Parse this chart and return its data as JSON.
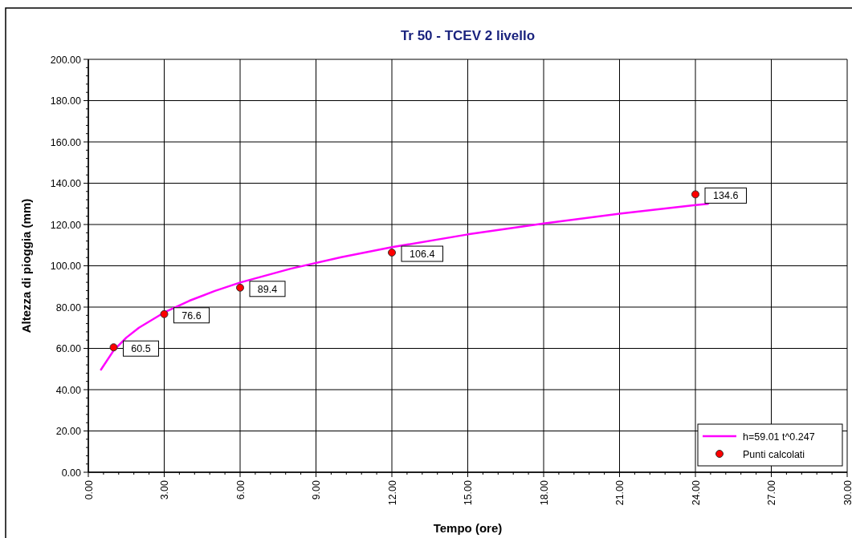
{
  "chart_data": {
    "type": "scatter",
    "title": "Tr 50 - TCEV 2 livello",
    "xlabel": "Tempo (ore)",
    "ylabel": "Altezza di pioggia (mm)",
    "xlim": [
      0,
      30
    ],
    "ylim": [
      0,
      200
    ],
    "xticks": [
      {
        "value": 0,
        "label": "0.00"
      },
      {
        "value": 3,
        "label": "3.00"
      },
      {
        "value": 6,
        "label": "6.00"
      },
      {
        "value": 9,
        "label": "9.00"
      },
      {
        "value": 12,
        "label": "12.00"
      },
      {
        "value": 15,
        "label": "15.00"
      },
      {
        "value": 18,
        "label": "18.00"
      },
      {
        "value": 21,
        "label": "21.00"
      },
      {
        "value": 24,
        "label": "24.00"
      },
      {
        "value": 27,
        "label": "27.00"
      },
      {
        "value": 30,
        "label": "30.00"
      }
    ],
    "yticks": [
      {
        "value": 0,
        "label": "0.00"
      },
      {
        "value": 20,
        "label": "20.00"
      },
      {
        "value": 40,
        "label": "40.00"
      },
      {
        "value": 60,
        "label": "60.00"
      },
      {
        "value": 80,
        "label": "80.00"
      },
      {
        "value": 100,
        "label": "100.00"
      },
      {
        "value": 120,
        "label": "120.00"
      },
      {
        "value": 140,
        "label": "140.00"
      },
      {
        "value": 160,
        "label": "160.00"
      },
      {
        "value": 180,
        "label": "180.00"
      },
      {
        "value": 200,
        "label": "200.00"
      }
    ],
    "grid": true,
    "legend": "bottom right",
    "series": [
      {
        "name": "h=59.01 t^0.247",
        "type": "line",
        "color": "#ff00ff",
        "marker": "none",
        "x": [
          0.5,
          1,
          1.5,
          2,
          3,
          4,
          5,
          6,
          8,
          10,
          12,
          15,
          18,
          21,
          24,
          24.5
        ],
        "values": [
          49.7,
          59.0,
          65.2,
          70.0,
          77.4,
          83.1,
          87.8,
          91.9,
          98.6,
          104.2,
          109.0,
          115.2,
          120.5,
          125.2,
          129.4,
          130.0
        ]
      },
      {
        "name": "Punti calcolati",
        "color": "#ff0000",
        "marker": "circle",
        "data_labels": true,
        "x": [
          1,
          3,
          6,
          12,
          24
        ],
        "values": [
          60.5,
          76.6,
          89.4,
          106.4,
          134.6
        ]
      }
    ]
  }
}
